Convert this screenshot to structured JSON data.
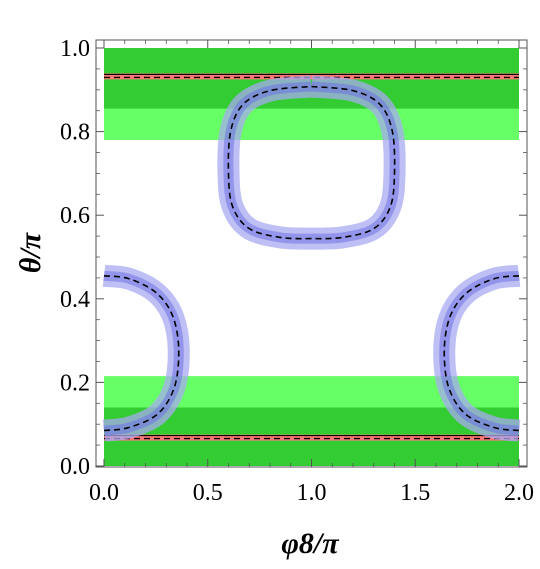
{
  "chart_data": {
    "type": "contour",
    "xlabel": "φ8/π",
    "ylabel": "θ/π",
    "xlim": [
      0,
      2
    ],
    "ylim": [
      0,
      1
    ],
    "x_ticks": [
      "0.0",
      "0.5",
      "1.0",
      "1.5",
      "2.0"
    ],
    "y_ticks": [
      "0.0",
      "0.2",
      "0.4",
      "0.6",
      "0.8",
      "1.0"
    ],
    "colors": {
      "light_green": "#66ff66",
      "dark_green": "#33cc33",
      "blue_band": "#a8aaf0",
      "red_line": "#ff7777",
      "black_line": "#000000"
    },
    "bands": [
      {
        "color": "light_green",
        "y_range": [
          0.0,
          0.215
        ]
      },
      {
        "color": "dark_green",
        "y_range": [
          0.0,
          0.14
        ]
      },
      {
        "color": "light_green",
        "y_range": [
          0.78,
          1.0
        ]
      },
      {
        "color": "dark_green",
        "y_range": [
          0.855,
          1.0
        ]
      }
    ],
    "horizontal_lines": [
      {
        "y": 0.068,
        "color": "red_line"
      },
      {
        "y": 0.932,
        "color": "red_line"
      }
    ],
    "curves": [
      {
        "name": "top-loop",
        "points": [
          [
            1.0,
            0.908
          ],
          [
            1.2,
            0.898
          ],
          [
            1.33,
            0.865
          ],
          [
            1.39,
            0.8
          ],
          [
            1.4,
            0.7
          ],
          [
            1.38,
            0.62
          ],
          [
            1.3,
            0.568
          ],
          [
            1.15,
            0.547
          ],
          [
            1.0,
            0.544
          ],
          [
            0.85,
            0.547
          ],
          [
            0.7,
            0.568
          ],
          [
            0.62,
            0.62
          ],
          [
            0.6,
            0.7
          ],
          [
            0.61,
            0.8
          ],
          [
            0.67,
            0.865
          ],
          [
            0.8,
            0.898
          ],
          [
            1.0,
            0.908
          ]
        ]
      },
      {
        "name": "left-arc",
        "points": [
          [
            0.0,
            0.455
          ],
          [
            0.12,
            0.448
          ],
          [
            0.25,
            0.415
          ],
          [
            0.33,
            0.36
          ],
          [
            0.36,
            0.28
          ],
          [
            0.34,
            0.19
          ],
          [
            0.26,
            0.125
          ],
          [
            0.12,
            0.092
          ],
          [
            0.0,
            0.085
          ]
        ]
      },
      {
        "name": "right-arc",
        "points": [
          [
            2.0,
            0.455
          ],
          [
            1.88,
            0.448
          ],
          [
            1.75,
            0.415
          ],
          [
            1.67,
            0.36
          ],
          [
            1.64,
            0.28
          ],
          [
            1.66,
            0.19
          ],
          [
            1.74,
            0.125
          ],
          [
            1.88,
            0.092
          ],
          [
            2.0,
            0.085
          ]
        ]
      }
    ]
  }
}
